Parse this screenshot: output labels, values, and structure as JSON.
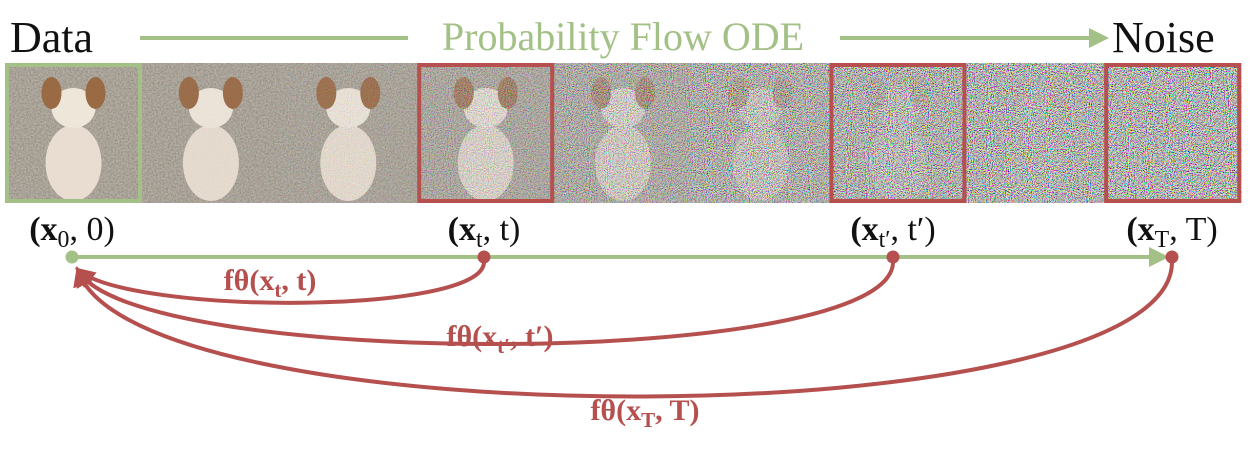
{
  "header": {
    "left": "Data",
    "middle": "Probability Flow ODE",
    "right": "Noise"
  },
  "points": [
    {
      "main": "(x",
      "sub": "0",
      "rest": ", 0)"
    },
    {
      "main": "(x",
      "sub": "t",
      "rest": ", t)"
    },
    {
      "main": "(x",
      "sub": "t′",
      "rest": ", t′)"
    },
    {
      "main": "(x",
      "sub": "T",
      "rest": ", T)"
    }
  ],
  "mappings": [
    {
      "main": "fθ(x",
      "sub": "t",
      "rest": ", t)"
    },
    {
      "main": "fθ(x",
      "sub": "t′",
      "rest": ", t′)"
    },
    {
      "main": "fθ(x",
      "sub": "T",
      "rest": ", T)"
    }
  ]
}
